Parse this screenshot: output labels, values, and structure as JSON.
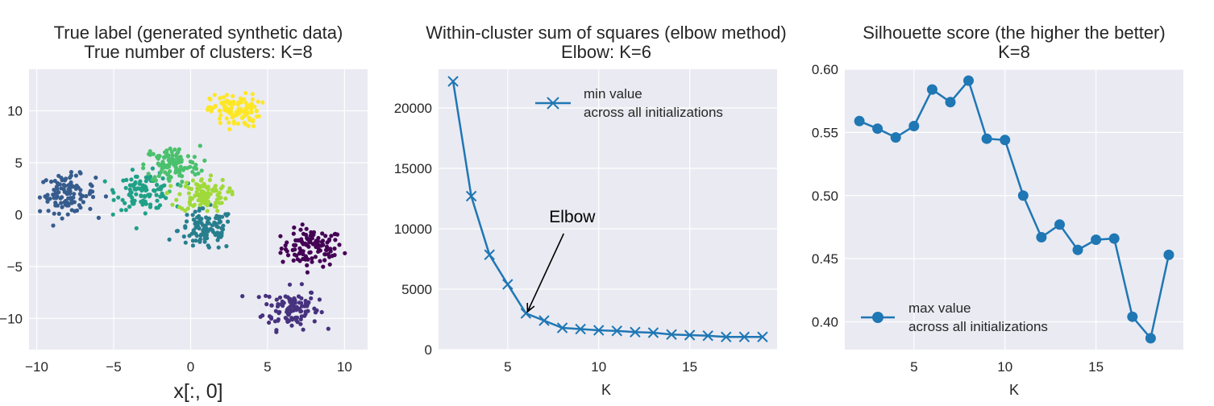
{
  "chart_data": [
    {
      "type": "scatter",
      "title": "True label (generated synthetic data)",
      "subtitle": "True number of clusters: K=8",
      "xlabel": "x[:, 0]",
      "ylabel": "",
      "xlim": [
        -10.5,
        11.5
      ],
      "ylim": [
        -13,
        14
      ],
      "xticks": [
        -10,
        -5,
        0,
        5,
        10
      ],
      "xtick_labels": [
        "−10",
        "−5",
        "0",
        "5",
        "10"
      ],
      "yticks": [
        -10,
        -5,
        0,
        5,
        10
      ],
      "ytick_labels": [
        "−10",
        "−5",
        "0",
        "5",
        "10"
      ],
      "grid": true,
      "colormap": "viridis",
      "clusters": [
        {
          "label": 0,
          "center": [
            7.9,
            -3.2
          ],
          "spread": [
            1.0,
            0.9
          ],
          "n": 110,
          "color": "#440154"
        },
        {
          "label": 1,
          "center": [
            6.5,
            -9.0
          ],
          "spread": [
            0.9,
            1.0
          ],
          "n": 110,
          "color": "#46327e"
        },
        {
          "label": 2,
          "center": [
            -8.0,
            2.0
          ],
          "spread": [
            0.9,
            0.9
          ],
          "n": 110,
          "color": "#365c8d"
        },
        {
          "label": 3,
          "center": [
            1.0,
            -1.5
          ],
          "spread": [
            0.9,
            1.0
          ],
          "n": 110,
          "color": "#277f8e"
        },
        {
          "label": 4,
          "center": [
            -3.0,
            2.3
          ],
          "spread": [
            0.9,
            0.9
          ],
          "n": 110,
          "color": "#1fa187"
        },
        {
          "label": 5,
          "center": [
            -1.2,
            4.8
          ],
          "spread": [
            0.9,
            0.9
          ],
          "n": 110,
          "color": "#4ac16d"
        },
        {
          "label": 6,
          "center": [
            0.8,
            1.9
          ],
          "spread": [
            0.8,
            0.8
          ],
          "n": 110,
          "color": "#a0da39"
        },
        {
          "label": 7,
          "center": [
            2.9,
            10.0
          ],
          "spread": [
            0.8,
            0.8
          ],
          "n": 110,
          "color": "#fde725"
        }
      ]
    },
    {
      "type": "line",
      "title": "Within-cluster sum of squares (elbow method)",
      "subtitle": "Elbow: K=6",
      "xlabel": "K",
      "ylabel": "",
      "xlim": [
        1.2,
        19.8
      ],
      "ylim": [
        0,
        23200
      ],
      "xticks": [
        5,
        10,
        15
      ],
      "yticks": [
        0,
        5000,
        10000,
        15000,
        20000
      ],
      "grid": true,
      "marker": "x",
      "color": "#1f77b4",
      "legend": {
        "entries": [
          "min value",
          "across all initializations"
        ],
        "placement": "upper right"
      },
      "annotation": {
        "text": "Elbow",
        "point": [
          6,
          3000
        ],
        "text_pos": [
          7.9,
          10400
        ]
      },
      "series": [
        {
          "x": [
            2,
            3,
            4,
            5,
            6,
            7,
            8,
            9,
            10,
            11,
            12,
            13,
            14,
            15,
            16,
            17,
            18,
            19
          ],
          "values": [
            22200,
            12700,
            7850,
            5400,
            3000,
            2400,
            1800,
            1700,
            1600,
            1550,
            1450,
            1400,
            1250,
            1200,
            1150,
            1050,
            1050,
            1050
          ]
        }
      ]
    },
    {
      "type": "line",
      "title": "Silhouette score (the higher the better)",
      "subtitle": "K=8",
      "xlabel": "K",
      "ylabel": "",
      "xlim": [
        1.2,
        19.8
      ],
      "ylim": [
        0.378,
        0.6
      ],
      "xticks": [
        5,
        10,
        15
      ],
      "yticks": [
        0.4,
        0.45,
        0.5,
        0.55,
        0.6
      ],
      "ytick_labels": [
        "0.40",
        "0.45",
        "0.50",
        "0.55",
        "0.60"
      ],
      "grid": true,
      "marker": "o",
      "color": "#1f77b4",
      "legend": {
        "entries": [
          "max value",
          "across all initializations"
        ],
        "placement": "lower left"
      },
      "series": [
        {
          "x": [
            2,
            3,
            4,
            5,
            6,
            7,
            8,
            9,
            10,
            11,
            12,
            13,
            14,
            15,
            16,
            17,
            18,
            19
          ],
          "values": [
            0.559,
            0.553,
            0.546,
            0.555,
            0.584,
            0.574,
            0.591,
            0.545,
            0.544,
            0.5,
            0.467,
            0.477,
            0.457,
            0.465,
            0.466,
            0.404,
            0.387,
            0.453
          ]
        }
      ]
    }
  ]
}
